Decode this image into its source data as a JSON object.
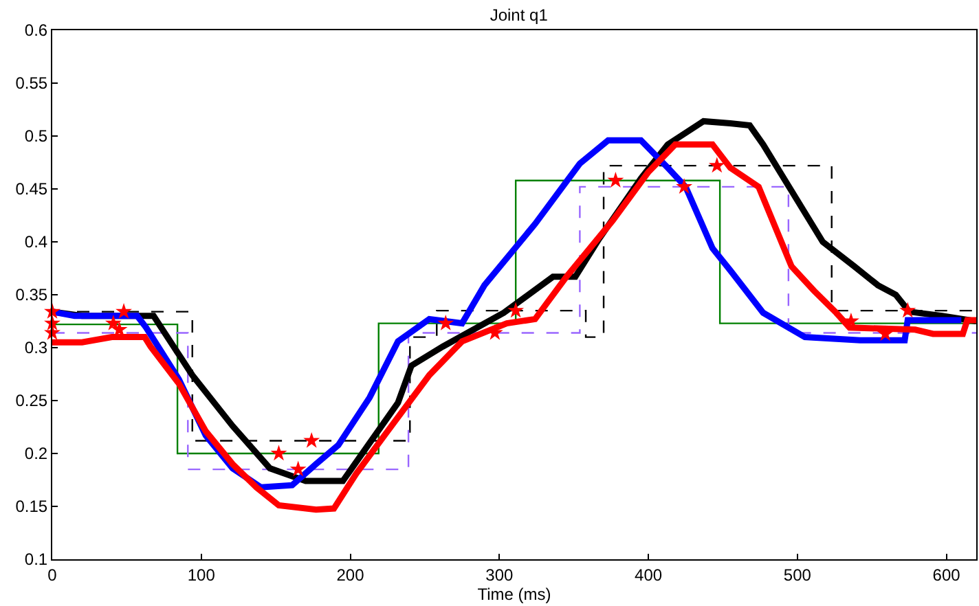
{
  "chart_data": {
    "type": "line",
    "title": "Joint q1",
    "xlabel": "Time (ms)",
    "xlim": [
      0,
      620
    ],
    "xticks": [
      0,
      100,
      200,
      300,
      400,
      500,
      600
    ],
    "ylim": [
      0.1,
      0.6
    ],
    "yticks": [
      0.1,
      0.15,
      0.2,
      0.25,
      0.3,
      0.35,
      0.4,
      0.45,
      0.5,
      0.55,
      0.6
    ],
    "line_style": "solid",
    "series": [
      {
        "type": "step",
        "color": "#000000",
        "line_style": "dashed",
        "x": [
          0,
          94,
          240,
          258,
          358,
          370,
          523,
          620
        ],
        "values": [
          0.334,
          0.212,
          0.31,
          0.335,
          0.31,
          0.472,
          0.335,
          0.335
        ]
      },
      {
        "type": "step",
        "color": "#008000",
        "line_style": "solid",
        "x": [
          0,
          84,
          219,
          311,
          448,
          620
        ],
        "values": [
          0.322,
          0.2,
          0.323,
          0.458,
          0.323,
          0.323
        ]
      },
      {
        "type": "step",
        "color": "#9966ff",
        "line_style": "dashed",
        "x": [
          0,
          91,
          239,
          354,
          494,
          620
        ],
        "values": [
          0.314,
          0.185,
          0.314,
          0.452,
          0.314,
          0.314
        ]
      },
      {
        "color": "#000000",
        "x": [
          0,
          20,
          68,
          94,
          121,
          146,
          170,
          195,
          232,
          241,
          262,
          303,
          336,
          351,
          367,
          395,
          413,
          437,
          455,
          468,
          477,
          517,
          538,
          554,
          566,
          575,
          597,
          620
        ],
        "values": [
          0.334,
          0.33,
          0.33,
          0.274,
          0.226,
          0.186,
          0.174,
          0.174,
          0.248,
          0.283,
          0.301,
          0.333,
          0.367,
          0.367,
          0.403,
          0.46,
          0.492,
          0.514,
          0.512,
          0.51,
          0.492,
          0.4,
          0.377,
          0.359,
          0.35,
          0.334,
          0.33,
          0.325
        ]
      },
      {
        "color": "#0000ff",
        "x": [
          0,
          15,
          57,
          63,
          85,
          103,
          121,
          140,
          161,
          177,
          192,
          213,
          232,
          253,
          275,
          290,
          324,
          354,
          373,
          395,
          404,
          413,
          425,
          443,
          455,
          477,
          505,
          542,
          572,
          574,
          610
        ],
        "values": [
          0.334,
          0.33,
          0.33,
          0.319,
          0.27,
          0.217,
          0.186,
          0.168,
          0.17,
          0.19,
          0.208,
          0.253,
          0.306,
          0.327,
          0.323,
          0.359,
          0.417,
          0.474,
          0.496,
          0.496,
          0.483,
          0.47,
          0.452,
          0.394,
          0.373,
          0.333,
          0.31,
          0.307,
          0.307,
          0.326,
          0.326
        ]
      },
      {
        "color": "#ff0000",
        "x": [
          0,
          20,
          40,
          62,
          66,
          85,
          103,
          121,
          137,
          152,
          177,
          189,
          204,
          225,
          253,
          275,
          305,
          324,
          345,
          376,
          400,
          418,
          443,
          455,
          474,
          496,
          511,
          526,
          535,
          579,
          591,
          611,
          614,
          620
        ],
        "values": [
          0.305,
          0.305,
          0.31,
          0.31,
          0.301,
          0.266,
          0.221,
          0.19,
          0.168,
          0.151,
          0.147,
          0.148,
          0.181,
          0.221,
          0.274,
          0.306,
          0.323,
          0.327,
          0.367,
          0.42,
          0.466,
          0.492,
          0.492,
          0.47,
          0.452,
          0.377,
          0.354,
          0.333,
          0.319,
          0.317,
          0.313,
          0.313,
          0.326,
          0.326
        ]
      },
      {
        "type": "scatter",
        "color": "#ff0000",
        "marker": "star",
        "x": [
          0,
          0,
          0,
          48,
          41,
          45,
          152,
          174,
          165,
          264,
          311,
          297,
          378,
          424,
          446,
          574,
          536,
          559
        ],
        "values": [
          0.334,
          0.323,
          0.314,
          0.334,
          0.323,
          0.317,
          0.2,
          0.212,
          0.185,
          0.323,
          0.335,
          0.314,
          0.458,
          0.452,
          0.472,
          0.335,
          0.325,
          0.313
        ]
      }
    ]
  }
}
